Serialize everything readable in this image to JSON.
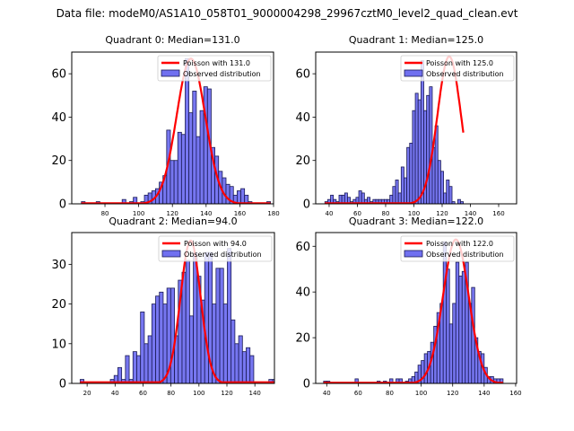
{
  "figure": {
    "suptitle": "Data file: modeM0/AS1A10_058T01_9000004298_29967cztM0_level2_quad_clean.evt",
    "colors": {
      "bar_fill": "#7070f0",
      "bar_edge": "#1a1a55",
      "poisson_line": "#ff0000"
    },
    "legend_labels": [
      "Poisson with {median}",
      "Observed distribution"
    ]
  },
  "chart_data": [
    {
      "type": "bar",
      "title": "Quadrant 0: Median=131.0",
      "median": 131.0,
      "legend": [
        "Poisson with 131.0",
        "Observed distribution"
      ],
      "legend_position": "top-right",
      "xlabel": "",
      "ylabel": "",
      "xlim": [
        60.3,
        180
      ],
      "ylim": [
        0,
        70
      ],
      "xticks": [
        80,
        100,
        120,
        140,
        160,
        180
      ],
      "yticks": [
        0,
        20,
        40,
        60
      ],
      "bin_start": 66,
      "bin_width": 2.2,
      "counts": [
        1,
        0,
        0,
        0,
        1,
        0,
        0,
        0,
        0,
        0,
        0,
        2,
        0,
        1,
        3,
        0,
        1,
        4,
        5,
        6,
        7,
        10,
        13,
        34,
        20,
        20,
        33,
        32,
        67,
        42,
        52,
        31,
        43,
        54,
        53,
        26,
        22,
        15,
        12,
        9,
        8,
        4,
        6,
        7,
        4,
        1,
        0,
        0,
        0,
        0,
        1
      ],
      "poisson_lambda": 131.0,
      "poisson_peak": 67
    },
    {
      "type": "bar",
      "title": "Quadrant 1: Median=125.0",
      "median": 125.0,
      "legend": [
        "Poisson with 125.0",
        "Observed distribution"
      ],
      "legend_position": "top-right",
      "xlabel": "",
      "ylabel": "",
      "xlim": [
        30.5,
        172.7
      ],
      "ylim": [
        0,
        70
      ],
      "xticks": [
        40,
        60,
        80,
        100,
        120,
        140,
        160
      ],
      "yticks": [
        0,
        20,
        40,
        60
      ],
      "bin_start": 37,
      "bin_width": 2.0,
      "counts": [
        1,
        2,
        4,
        2,
        1,
        4,
        4,
        5,
        3,
        1,
        2,
        3,
        6,
        5,
        2,
        3,
        1,
        2,
        2,
        2,
        2,
        2,
        2,
        4,
        8,
        11,
        5,
        17,
        12,
        26,
        28,
        43,
        51,
        48,
        66,
        43,
        50,
        54,
        26,
        36,
        20,
        15,
        5,
        11,
        8,
        1,
        0,
        2,
        1
      ],
      "poisson_lambda": 125.0,
      "poisson_peak": 68
    },
    {
      "type": "bar",
      "title": "Quadrant 2: Median=94.0",
      "median": 94.0,
      "legend": [
        "Poisson with 94.0",
        "Observed distribution"
      ],
      "legend_position": "top-right",
      "xlabel": "",
      "ylabel": "",
      "xlim": [
        9,
        154
      ],
      "ylim": [
        0,
        38
      ],
      "xticks": [
        20,
        40,
        60,
        80,
        100,
        120,
        140
      ],
      "yticks": [
        0,
        10,
        20,
        30
      ],
      "bin_start": 15,
      "bin_width": 2.7,
      "counts": [
        1,
        0,
        0,
        0,
        0,
        0,
        0,
        0,
        1,
        2,
        4,
        1,
        7,
        1,
        8,
        7,
        18,
        10,
        12,
        20,
        22,
        23,
        20,
        24,
        24,
        12,
        26,
        28,
        31,
        17,
        33,
        27,
        21,
        33,
        33,
        20,
        29,
        29,
        20,
        34,
        16,
        10,
        12,
        8,
        9,
        7,
        0,
        0,
        0,
        0,
        1,
        1,
        1
      ],
      "poisson_lambda": 94.0,
      "poisson_peak": 36
    },
    {
      "type": "bar",
      "title": "Quadrant 3: Median=122.0",
      "median": 122.0,
      "legend": [
        "Poisson with 122.0",
        "Observed distribution"
      ],
      "legend_position": "top-right",
      "xlabel": "",
      "ylabel": "",
      "xlim": [
        33,
        160.6
      ],
      "ylim": [
        0,
        66
      ],
      "xticks": [
        40,
        60,
        80,
        100,
        120,
        140,
        160
      ],
      "yticks": [
        0,
        20,
        40,
        60
      ],
      "bin_start": 38,
      "bin_width": 2.0,
      "counts": [
        1,
        1,
        0,
        0,
        0,
        0,
        0,
        0,
        0,
        0,
        2,
        0,
        0,
        0,
        0,
        0,
        0,
        1,
        0,
        1,
        0,
        2,
        0,
        2,
        2,
        0,
        1,
        2,
        3,
        5,
        8,
        10,
        13,
        14,
        18,
        25,
        31,
        35,
        62,
        50,
        26,
        35,
        53,
        47,
        49,
        53,
        35,
        42,
        20,
        14,
        13,
        7,
        3,
        3,
        2,
        2,
        2
      ],
      "poisson_lambda": 122.0,
      "poisson_peak": 63
    }
  ]
}
